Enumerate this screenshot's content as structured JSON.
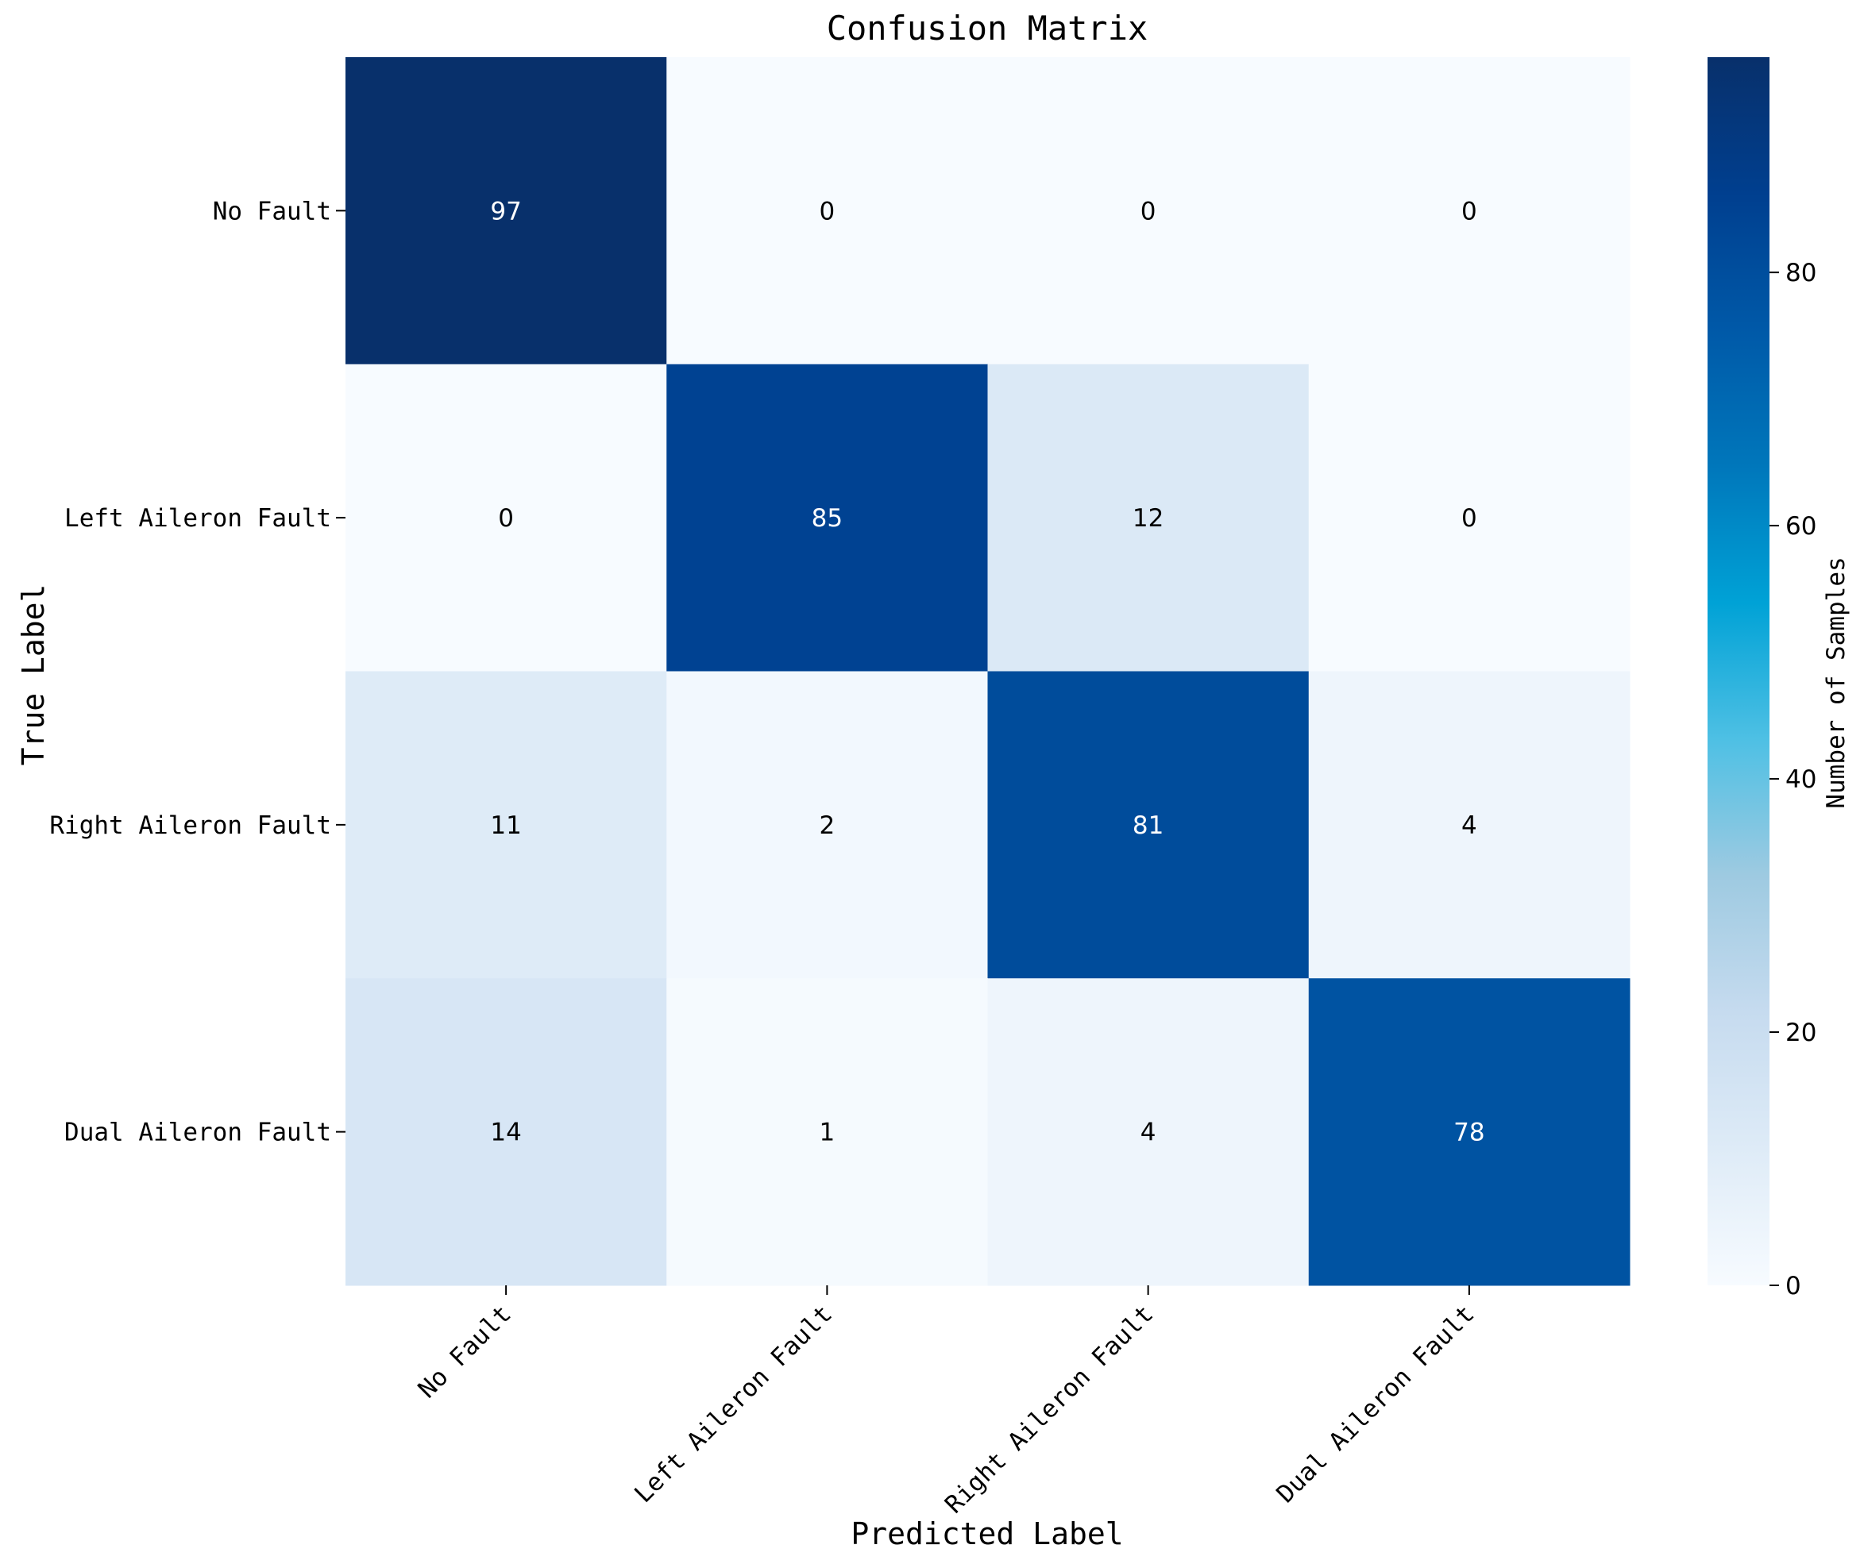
{
  "chart_data": {
    "type": "heatmap",
    "title": "Confusion Matrix",
    "xlabel": "Predicted Label",
    "ylabel": "True Label",
    "x_categories": [
      "No Fault",
      "Left Aileron Fault",
      "Right Aileron Fault",
      "Dual Aileron Fault"
    ],
    "y_categories": [
      "No Fault",
      "Left Aileron Fault",
      "Right Aileron Fault",
      "Dual Aileron Fault"
    ],
    "values": [
      [
        97,
        0,
        0,
        0
      ],
      [
        0,
        85,
        12,
        0
      ],
      [
        11,
        2,
        81,
        4
      ],
      [
        14,
        1,
        4,
        78
      ]
    ],
    "colorbar": {
      "label": "Number of Samples",
      "range": [
        0,
        97
      ],
      "ticks": [
        0,
        20,
        40,
        60,
        80
      ],
      "colormap": "Blues",
      "colors": [
        "#f7fbff",
        "#deebf7",
        "#c6dbef",
        "#9ecae1",
        "#4ec0e4",
        "#00a2d6",
        "#0077bb",
        "#0059a8",
        "#003f8f",
        "#08306b"
      ]
    },
    "grid": false,
    "legend": "colorbar-right"
  }
}
